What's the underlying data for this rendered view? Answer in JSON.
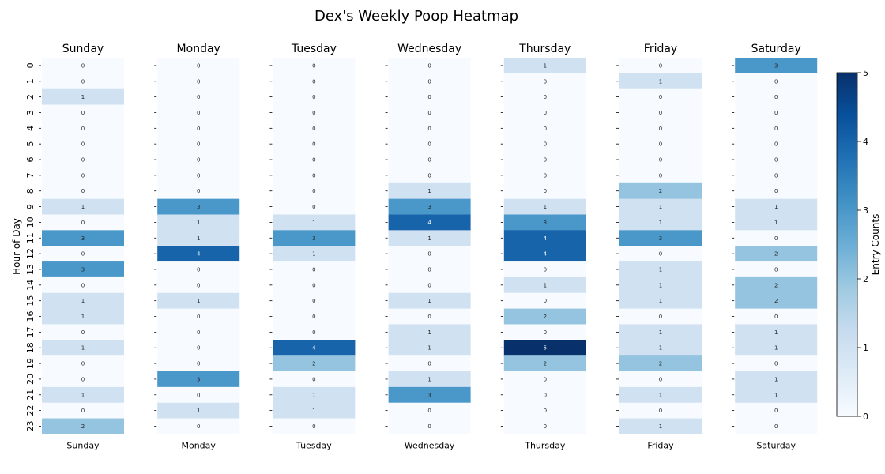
{
  "chart_data": {
    "type": "heatmap",
    "title": "Dex's Weekly Poop Heatmap",
    "ylabel": "Hour of Day",
    "colorbar_label": "Entry Counts",
    "colorbar_ticks": [
      0,
      1,
      2,
      3,
      4,
      5
    ],
    "value_range": [
      0,
      5
    ],
    "colormap": [
      "#f7fbff",
      "#deebf7",
      "#c6dbef",
      "#9ecae1",
      "#6baed6",
      "#4292c6",
      "#2171b5",
      "#08519c",
      "#08306b"
    ],
    "hours": [
      0,
      1,
      2,
      3,
      4,
      5,
      6,
      7,
      8,
      9,
      10,
      11,
      12,
      13,
      14,
      15,
      16,
      17,
      18,
      19,
      20,
      21,
      22,
      23
    ],
    "days": [
      {
        "name": "Sunday",
        "values": [
          0,
          0,
          1,
          0,
          0,
          0,
          0,
          0,
          0,
          1,
          0,
          3,
          0,
          3,
          0,
          1,
          1,
          0,
          1,
          0,
          0,
          1,
          0,
          2
        ]
      },
      {
        "name": "Monday",
        "values": [
          0,
          0,
          0,
          0,
          0,
          0,
          0,
          0,
          0,
          3,
          1,
          1,
          4,
          0,
          0,
          1,
          0,
          0,
          0,
          0,
          3,
          0,
          1,
          0
        ]
      },
      {
        "name": "Tuesday",
        "values": [
          0,
          0,
          0,
          0,
          0,
          0,
          0,
          0,
          0,
          0,
          1,
          3,
          1,
          0,
          0,
          0,
          0,
          0,
          4,
          2,
          0,
          1,
          1,
          0
        ]
      },
      {
        "name": "Wednesday",
        "values": [
          0,
          0,
          0,
          0,
          0,
          0,
          0,
          0,
          1,
          3,
          4,
          1,
          0,
          0,
          0,
          1,
          0,
          1,
          1,
          0,
          1,
          3,
          0,
          0
        ]
      },
      {
        "name": "Thursday",
        "values": [
          1,
          0,
          0,
          0,
          0,
          0,
          0,
          0,
          0,
          1,
          3,
          4,
          4,
          0,
          1,
          0,
          2,
          0,
          5,
          2,
          0,
          0,
          0,
          0
        ]
      },
      {
        "name": "Friday",
        "values": [
          0,
          1,
          0,
          0,
          0,
          0,
          0,
          0,
          2,
          1,
          1,
          3,
          0,
          1,
          1,
          1,
          0,
          1,
          1,
          2,
          0,
          1,
          0,
          1
        ]
      },
      {
        "name": "Saturday",
        "values": [
          3,
          0,
          0,
          0,
          0,
          0,
          0,
          0,
          0,
          1,
          1,
          0,
          2,
          0,
          2,
          2,
          0,
          1,
          1,
          0,
          1,
          1,
          0,
          0
        ]
      }
    ]
  }
}
